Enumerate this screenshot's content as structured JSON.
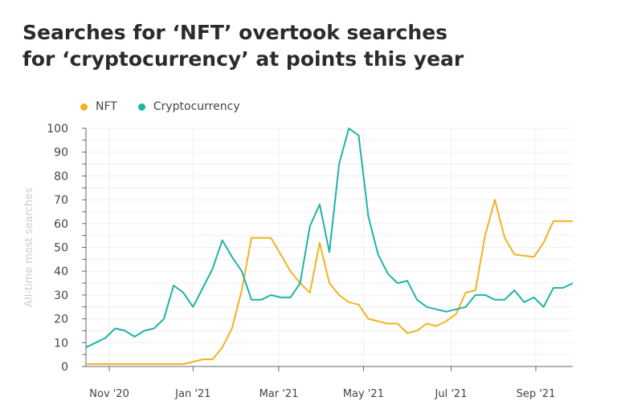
{
  "chart_data": {
    "type": "line",
    "title": "Searches for ‘NFT’ overtook searches for ‘cryptocurrency’ at points this year",
    "xlabel": "",
    "ylabel": "All-time most searches",
    "ylim": [
      0,
      100
    ],
    "yticks": [
      0,
      10,
      20,
      30,
      40,
      50,
      60,
      70,
      80,
      90,
      100
    ],
    "xticks": [
      {
        "label": "Nov '20",
        "pos": 2.4
      },
      {
        "label": "Jan '21",
        "pos": 11
      },
      {
        "label": "Mar '21",
        "pos": 19.8
      },
      {
        "label": "May '21",
        "pos": 28.5
      },
      {
        "label": "Jul '21",
        "pos": 37.5
      },
      {
        "label": "Sep '21",
        "pos": 46.2
      }
    ],
    "grid": true,
    "legend_placement": "top-left",
    "series": [
      {
        "name": "NFT",
        "color": "#f0b323",
        "values": [
          1,
          1,
          1,
          1,
          1,
          1,
          1,
          1,
          1,
          1,
          1,
          2,
          3,
          3,
          8,
          16,
          32,
          54,
          54,
          54,
          47,
          40,
          35,
          31,
          52,
          35,
          30,
          27,
          26,
          20,
          19,
          18,
          18,
          14,
          15,
          18,
          17,
          19,
          22,
          31,
          32,
          55,
          70,
          54,
          47,
          46.5,
          46,
          52,
          61,
          61,
          61
        ]
      },
      {
        "name": "Cryptocurrency",
        "color": "#1fb3a8",
        "values": [
          8,
          10,
          12,
          16,
          15,
          12.5,
          15,
          16,
          20,
          34,
          31,
          25,
          33,
          41,
          53,
          46,
          40,
          28,
          28,
          30,
          29,
          29,
          35,
          59,
          68,
          48,
          85,
          100,
          97,
          63,
          47,
          39,
          35,
          36,
          28,
          25,
          24,
          23,
          24,
          25,
          30,
          30,
          28,
          28,
          32,
          27,
          29,
          25,
          33,
          33,
          35
        ]
      }
    ]
  }
}
